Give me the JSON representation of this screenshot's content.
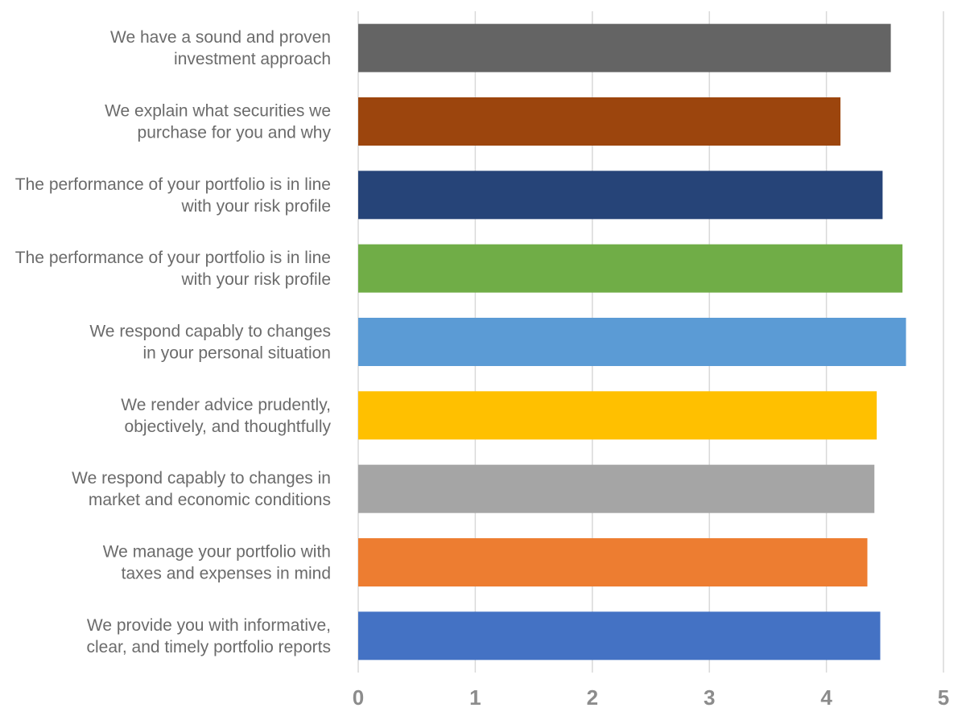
{
  "chart_data": {
    "type": "bar",
    "orientation": "horizontal",
    "title": "",
    "xlabel": "",
    "ylabel": "",
    "xlim": [
      0,
      5
    ],
    "x_ticks": [
      "0",
      "1",
      "2",
      "3",
      "4",
      "5"
    ],
    "grid": "vertical",
    "legend": "none",
    "categories": [
      [
        "We have a sound and proven",
        "investment approach"
      ],
      [
        "We explain what securities we",
        "purchase for you and why"
      ],
      [
        "The performance of your portfolio is in line",
        "with your risk profile"
      ],
      [
        "The performance of your portfolio is in line",
        "with your risk profile"
      ],
      [
        "We respond capably to changes",
        "in your personal situation"
      ],
      [
        "We render advice prudently,",
        "objectively, and thoughtfully"
      ],
      [
        "We respond capably to changes in",
        "market and economic conditions"
      ],
      [
        "We manage your portfolio with",
        "taxes and expenses in mind"
      ],
      [
        "We provide you with informative,",
        "clear, and timely portfolio reports"
      ]
    ],
    "values": [
      4.55,
      4.12,
      4.48,
      4.65,
      4.68,
      4.43,
      4.41,
      4.35,
      4.46
    ],
    "colors": [
      "#646464",
      "#9c450d",
      "#264478",
      "#70ad47",
      "#5b9bd5",
      "#ffc000",
      "#a5a5a5",
      "#ed7d31",
      "#4472c4"
    ]
  }
}
